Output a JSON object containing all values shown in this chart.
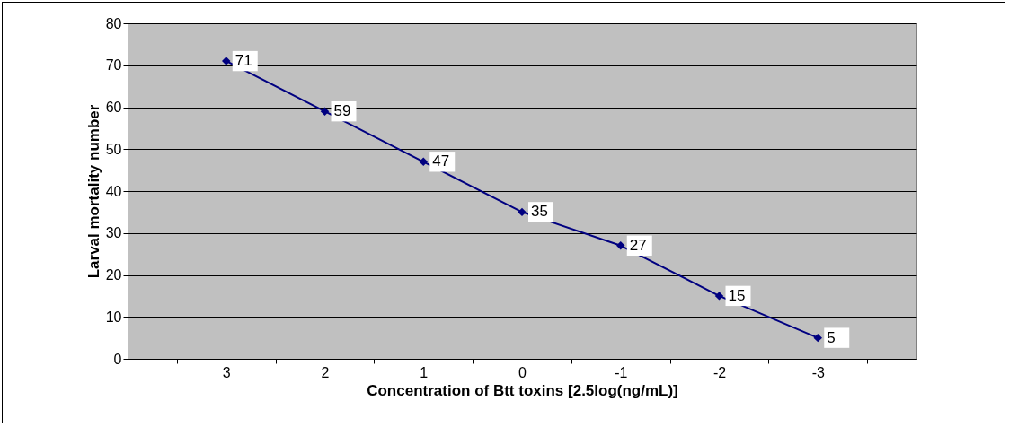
{
  "chart_data": {
    "type": "line",
    "xlabel": "Concentration of Btt toxins [2.5log(ng/mL)]",
    "ylabel": "Larval mortality number",
    "categories": [
      "3",
      "2",
      "1",
      "0",
      "-1",
      "-2",
      "-3"
    ],
    "series": [
      {
        "color": "#000080",
        "values": [
          71,
          59,
          47,
          35,
          27,
          15,
          5
        ]
      }
    ],
    "ylim": [
      0,
      80
    ],
    "yticks": [
      0,
      10,
      20,
      30,
      40,
      50,
      60,
      70,
      80
    ],
    "grid": "y",
    "marker": "diamond",
    "data_labels": true
  }
}
